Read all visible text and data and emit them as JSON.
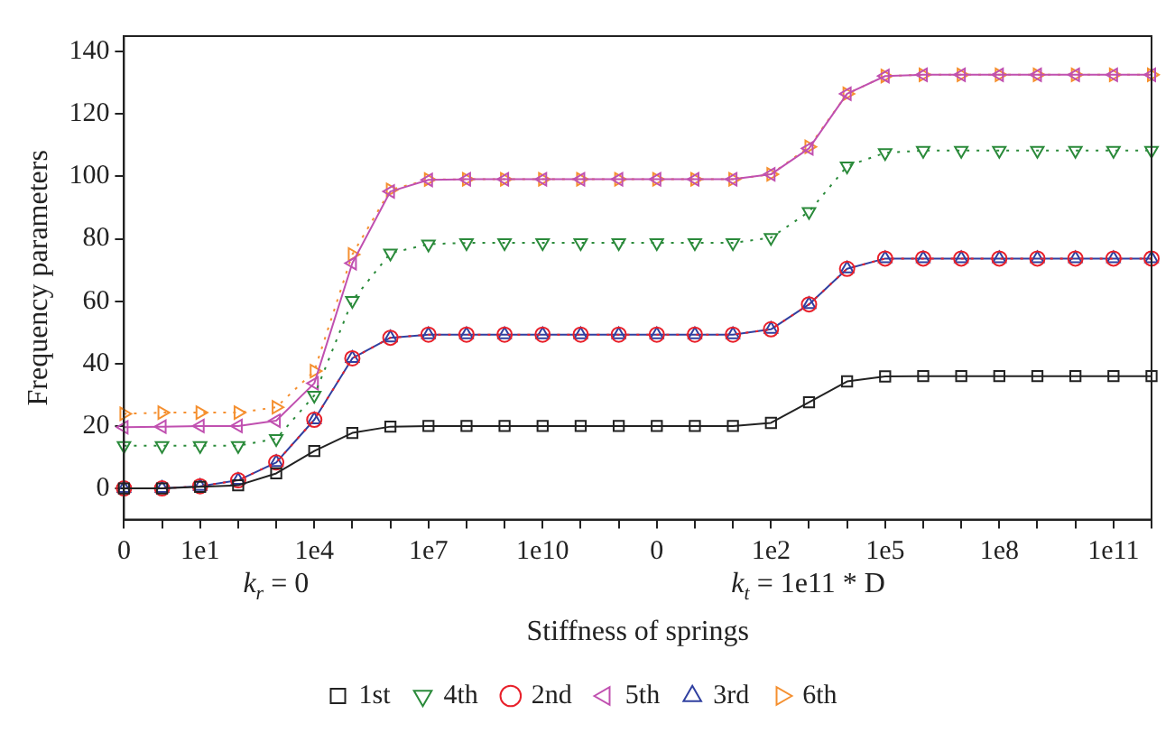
{
  "chart_data": {
    "type": "line",
    "xlabel": "Stiffness of springs",
    "ylabel": "Frequency parameters",
    "categories": [
      "0",
      null,
      "1e1",
      null,
      null,
      "1e4",
      null,
      null,
      "1e7",
      null,
      null,
      "1e10",
      null,
      null,
      "0",
      null,
      null,
      "1e2",
      null,
      null,
      "1e5",
      null,
      null,
      "1e8",
      null,
      null,
      "1e11",
      null
    ],
    "annotations": [
      "k$_{r}$ = 0",
      "k$_{t}$ = 1e11 * D"
    ],
    "ylim": [
      -10,
      145
    ],
    "yticks": [
      0,
      20,
      40,
      60,
      80,
      100,
      120,
      140
    ],
    "grid": false,
    "legend": "bottom",
    "series": [
      {
        "name": "1st",
        "color": "#222222",
        "marker": "square",
        "line_style": "solid",
        "values": [
          0,
          0,
          0.5,
          1,
          4.8,
          12,
          17.8,
          19.8,
          20,
          20,
          20,
          20,
          20,
          20,
          20,
          20,
          20,
          21,
          27.6,
          34.3,
          35.9,
          36,
          36,
          36,
          36,
          36,
          36,
          36
        ]
      },
      {
        "name": "4th",
        "color": "#2a8a3a",
        "marker": "triangle",
        "line_style": "dotted",
        "values": [
          13.7,
          13.7,
          13.7,
          13.7,
          15.9,
          29.8,
          60.2,
          75.4,
          78.3,
          78.7,
          78.7,
          78.7,
          78.7,
          78.7,
          78.7,
          78.7,
          78.7,
          80.4,
          88.7,
          103.3,
          107.6,
          108.3,
          108.3,
          108.3,
          108.3,
          108.3,
          108.3,
          108.3
        ]
      },
      {
        "name": "2nd",
        "color": "#e8202a",
        "marker": "circle",
        "line_style": "dotted",
        "values": [
          0,
          0,
          0.7,
          2.6,
          8.3,
          22,
          41.7,
          48.3,
          49.3,
          49.3,
          49.3,
          49.3,
          49.3,
          49.3,
          49.3,
          49.3,
          49.3,
          51,
          59,
          70.4,
          73.7,
          73.7,
          73.7,
          73.7,
          73.7,
          73.7,
          73.7,
          73.7
        ]
      },
      {
        "name": "5th",
        "color": "#c050b0",
        "marker": "triangle",
        "line_style": "solid",
        "values": [
          19.6,
          19.8,
          20,
          20,
          21.7,
          33.7,
          72.2,
          95.2,
          98.9,
          99.1,
          99.1,
          99.1,
          99.1,
          99.1,
          99.1,
          99.1,
          99.1,
          100.7,
          109,
          126.5,
          132.2,
          132.6,
          132.6,
          132.6,
          132.6,
          132.6,
          132.6,
          132.6
        ]
      },
      {
        "name": "3rd",
        "color": "#3040a0",
        "marker": "triangle",
        "line_style": "solid",
        "values": [
          0,
          0,
          0.7,
          2.6,
          8.3,
          22,
          41.7,
          48.3,
          49.3,
          49.3,
          49.3,
          49.3,
          49.3,
          49.3,
          49.3,
          49.3,
          49.3,
          51,
          59,
          70.4,
          73.7,
          73.7,
          73.7,
          73.7,
          73.7,
          73.7,
          73.7,
          73.7
        ]
      },
      {
        "name": "6th",
        "color": "#f59030",
        "marker": "triangle",
        "line_style": "dotted",
        "values": [
          23.9,
          24.3,
          24.3,
          24.3,
          26,
          37.6,
          75,
          95.7,
          99,
          99.1,
          99.1,
          99.1,
          99.1,
          99.1,
          99.1,
          99.1,
          99.1,
          100.7,
          109.5,
          126.5,
          132.2,
          132.6,
          132.6,
          132.6,
          132.6,
          132.6,
          132.6,
          132.6
        ]
      }
    ]
  }
}
